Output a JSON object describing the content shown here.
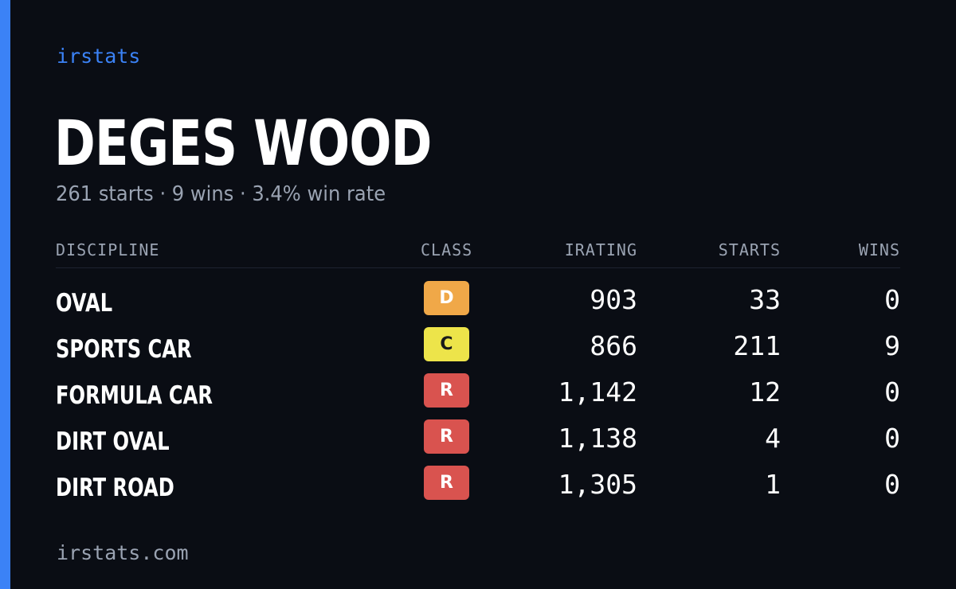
{
  "brand": "irstats",
  "driver": {
    "name": "DEGES WOOD",
    "summary": "261 starts · 9 wins · 3.4% win rate"
  },
  "table": {
    "headers": {
      "discipline": "DISCIPLINE",
      "class": "CLASS",
      "irating": "IRATING",
      "starts": "STARTS",
      "wins": "WINS"
    },
    "rows": [
      {
        "discipline": "OVAL",
        "class": "D",
        "class_color": "#f0a848",
        "class_text_color": "#ffffff",
        "irating": "903",
        "starts": "33",
        "wins": "0"
      },
      {
        "discipline": "SPORTS CAR",
        "class": "C",
        "class_color": "#ede44a",
        "class_text_color": "#1a1a1a",
        "irating": "866",
        "starts": "211",
        "wins": "9"
      },
      {
        "discipline": "FORMULA CAR",
        "class": "R",
        "class_color": "#d9534f",
        "class_text_color": "#ffffff",
        "irating": "1,142",
        "starts": "12",
        "wins": "0"
      },
      {
        "discipline": "DIRT OVAL",
        "class": "R",
        "class_color": "#d9534f",
        "class_text_color": "#ffffff",
        "irating": "1,138",
        "starts": "4",
        "wins": "0"
      },
      {
        "discipline": "DIRT ROAD",
        "class": "R",
        "class_color": "#d9534f",
        "class_text_color": "#ffffff",
        "irating": "1,305",
        "starts": "1",
        "wins": "0"
      }
    ]
  },
  "footer": "irstats.com",
  "colors": {
    "accent": "#3b82f6",
    "background": "#0a0d14",
    "muted_text": "#9aa3b2"
  }
}
